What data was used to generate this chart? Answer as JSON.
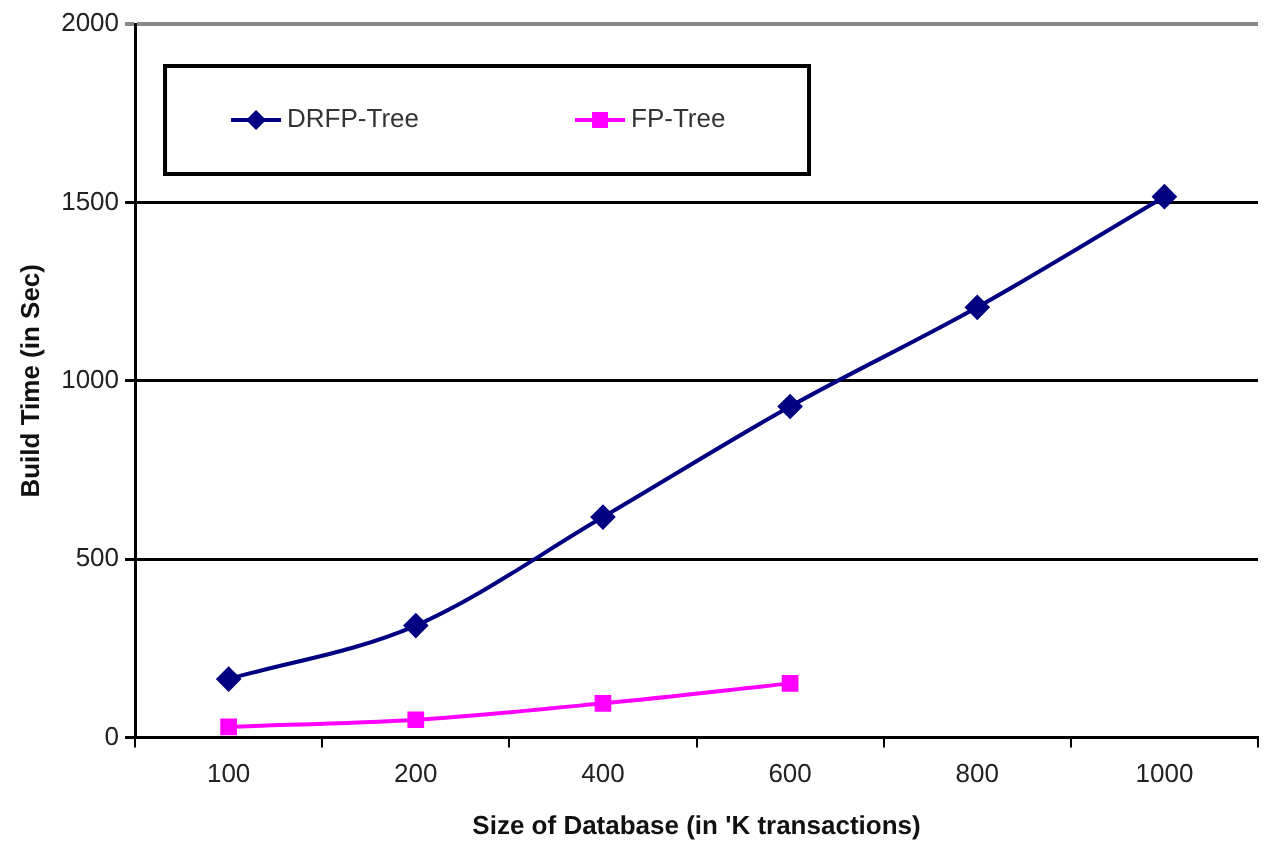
{
  "chart_data": {
    "type": "line",
    "xlabel": "Size of Database (in 'K transactions)",
    "ylabel": "Build Time (in Sec)",
    "categories": [
      "100",
      "200",
      "400",
      "600",
      "800",
      "1000"
    ],
    "series": [
      {
        "name": "DRFP-Tree",
        "color": "#000080",
        "marker": "diamond",
        "values": [
          164,
          314,
          618,
          928,
          1206,
          1516
        ]
      },
      {
        "name": "FP-Tree",
        "color": "#ff00ff",
        "marker": "square",
        "values": [
          30,
          50,
          96,
          152,
          null,
          null
        ]
      }
    ],
    "ylim": [
      0,
      2000
    ],
    "yticks": [
      0,
      500,
      1000,
      1500,
      2000
    ],
    "grid": "y",
    "legend": "top left",
    "line_style": "solid"
  }
}
